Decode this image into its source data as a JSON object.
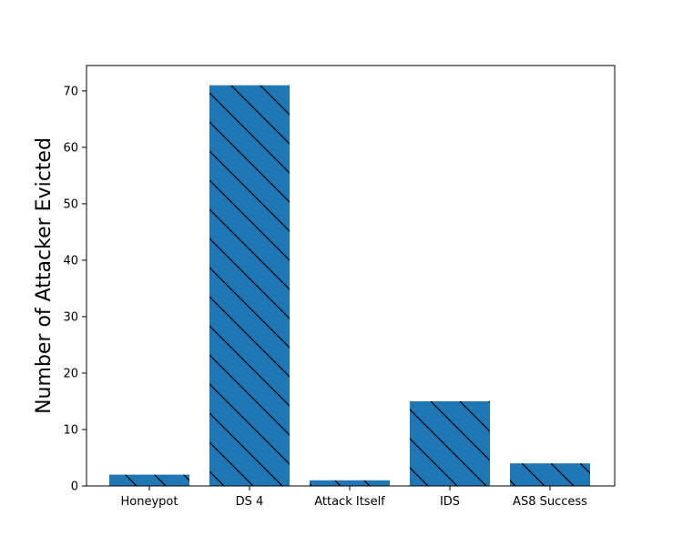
{
  "chart_data": {
    "type": "bar",
    "title": "",
    "xlabel": "",
    "ylabel": "Number of Attacker Evicted",
    "categories": [
      "Honeypot",
      "DS 4",
      "Attack Itself",
      "IDS",
      "AS8 Success"
    ],
    "values": [
      2,
      71,
      1,
      15,
      4
    ],
    "ylim": [
      0,
      74.5
    ],
    "yticks": [
      0,
      10,
      20,
      30,
      40,
      50,
      60,
      70
    ],
    "bar_color": "#1f77b4",
    "hatch": "diagonal-backslash",
    "grid": false,
    "legend": "none"
  }
}
